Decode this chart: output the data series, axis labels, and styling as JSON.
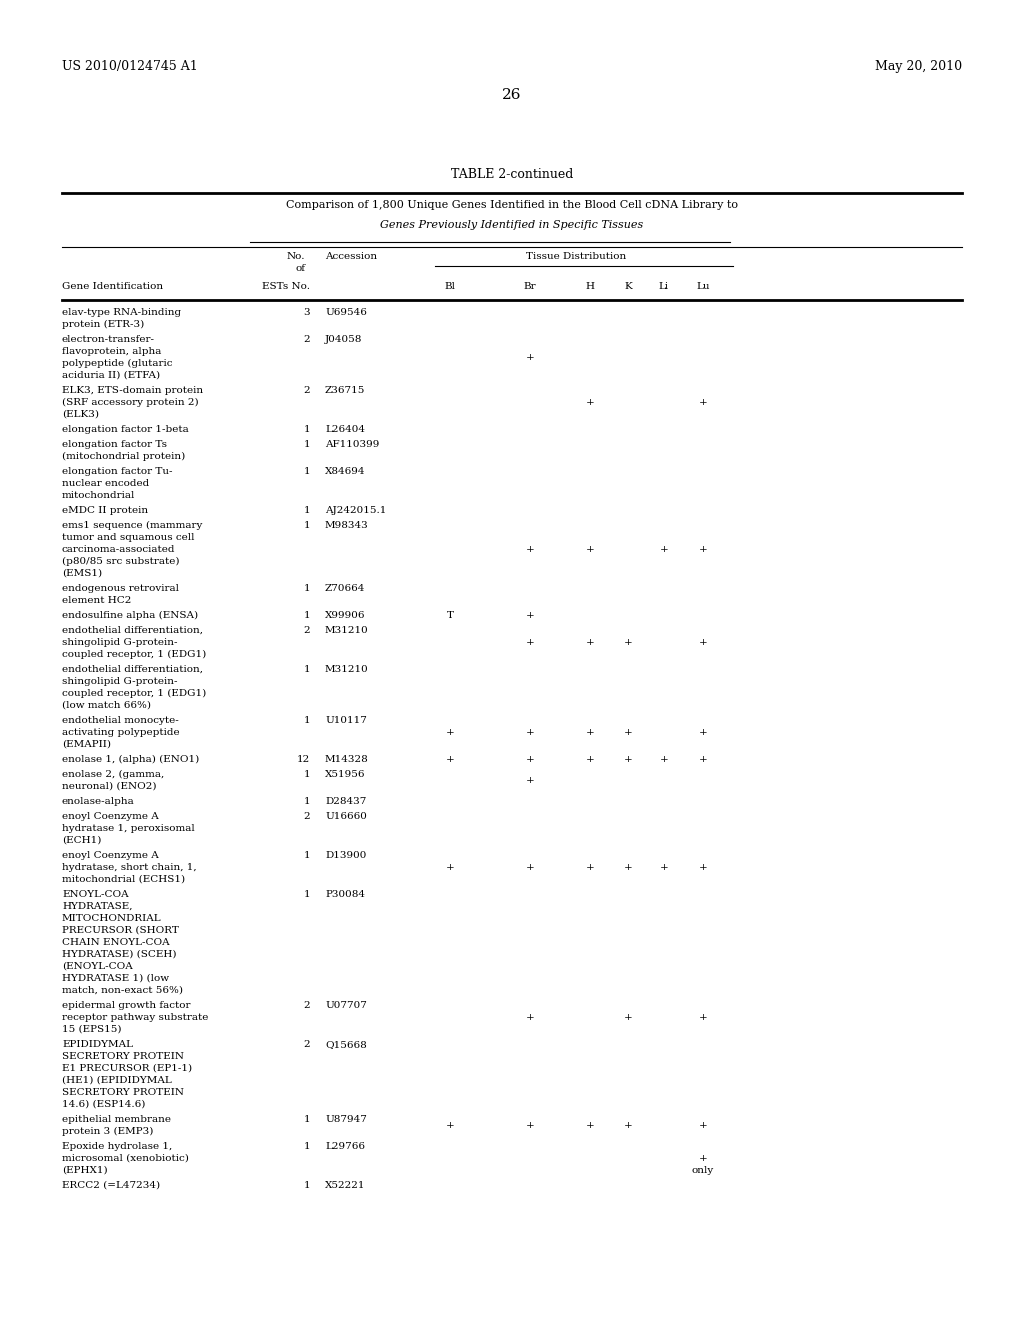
{
  "header_left": "US 2010/0124745 A1",
  "header_right": "May 20, 2010",
  "page_number": "26",
  "table_title": "TABLE 2-continued",
  "subtitle1": "Comparison of 1,800 Unique Genes Identified in the Blood Cell cDNA Library to",
  "subtitle2": "Genes Previously Identified in Specific Tissues",
  "rows": [
    {
      "gene": "elav-type RNA-binding\nprotein (ETR-3)",
      "ests": "3",
      "acc": "U69546",
      "bl": "",
      "br": "",
      "h": "",
      "k": "",
      "li": "",
      "lu": ""
    },
    {
      "gene": "electron-transfer-\nflavoprotein, alpha\npolypeptide (glutaric\naciduria II) (ETFA)",
      "ests": "2",
      "acc": "J04058",
      "bl": "",
      "br": "+",
      "h": "",
      "k": "",
      "li": "",
      "lu": ""
    },
    {
      "gene": "ELK3, ETS-domain protein\n(SRF accessory protein 2)\n(ELK3)",
      "ests": "2",
      "acc": "Z36715",
      "bl": "",
      "br": "",
      "h": "+",
      "k": "",
      "li": "",
      "lu": "+"
    },
    {
      "gene": "elongation factor 1-beta",
      "ests": "1",
      "acc": "L26404",
      "bl": "",
      "br": "",
      "h": "",
      "k": "",
      "li": "",
      "lu": ""
    },
    {
      "gene": "elongation factor Ts\n(mitochondrial protein)",
      "ests": "1",
      "acc": "AF110399",
      "bl": "",
      "br": "",
      "h": "",
      "k": "",
      "li": "",
      "lu": ""
    },
    {
      "gene": "elongation factor Tu-\nnuclear encoded\nmitochondrial",
      "ests": "1",
      "acc": "X84694",
      "bl": "",
      "br": "",
      "h": "",
      "k": "",
      "li": "",
      "lu": ""
    },
    {
      "gene": "eMDC II protein",
      "ests": "1",
      "acc": "AJ242015.1",
      "bl": "",
      "br": "",
      "h": "",
      "k": "",
      "li": "",
      "lu": ""
    },
    {
      "gene": "ems1 sequence (mammary\ntumor and squamous cell\ncarcinoma-associated\n(p80/85 src substrate)\n(EMS1)",
      "ests": "1",
      "acc": "M98343",
      "bl": "",
      "br": "+",
      "h": "+",
      "k": "",
      "li": "+",
      "lu": "+"
    },
    {
      "gene": "endogenous retroviral\nelement HC2",
      "ests": "1",
      "acc": "Z70664",
      "bl": "",
      "br": "",
      "h": "",
      "k": "",
      "li": "",
      "lu": ""
    },
    {
      "gene": "endosulfine alpha (ENSA)",
      "ests": "1",
      "acc": "X99906",
      "bl": "T",
      "br": "+",
      "h": "",
      "k": "",
      "li": "",
      "lu": ""
    },
    {
      "gene": "endothelial differentiation,\nshingolipid G-protein-\ncoupled receptor, 1 (EDG1)",
      "ests": "2",
      "acc": "M31210",
      "bl": "",
      "br": "+",
      "h": "+",
      "k": "+",
      "li": "",
      "lu": "+"
    },
    {
      "gene": "endothelial differentiation,\nshingolipid G-protein-\ncoupled receptor, 1 (EDG1)\n(low match 66%)",
      "ests": "1",
      "acc": "M31210",
      "bl": "",
      "br": "",
      "h": "",
      "k": "",
      "li": "",
      "lu": ""
    },
    {
      "gene": "endothelial monocyte-\nactivating polypeptide\n(EMAPII)",
      "ests": "1",
      "acc": "U10117",
      "bl": "+",
      "br": "+",
      "h": "+",
      "k": "+",
      "li": "",
      "lu": "+"
    },
    {
      "gene": "enolase 1, (alpha) (ENO1)",
      "ests": "12",
      "acc": "M14328",
      "bl": "+",
      "br": "+",
      "h": "+",
      "k": "+",
      "li": "+",
      "lu": "+"
    },
    {
      "gene": "enolase 2, (gamma,\nneuronal) (ENO2)",
      "ests": "1",
      "acc": "X51956",
      "bl": "",
      "br": "+",
      "h": "",
      "k": "",
      "li": "",
      "lu": ""
    },
    {
      "gene": "enolase-alpha",
      "ests": "1",
      "acc": "D28437",
      "bl": "",
      "br": "",
      "h": "",
      "k": "",
      "li": "",
      "lu": ""
    },
    {
      "gene": "enoyl Coenzyme A\nhydratase 1, peroxisomal\n(ECH1)",
      "ests": "2",
      "acc": "U16660",
      "bl": "",
      "br": "",
      "h": "",
      "k": "",
      "li": "",
      "lu": ""
    },
    {
      "gene": "enoyl Coenzyme A\nhydratase, short chain, 1,\nmitochondrial (ECHS1)",
      "ests": "1",
      "acc": "D13900",
      "bl": "+",
      "br": "+",
      "h": "+",
      "k": "+",
      "li": "+",
      "lu": "+"
    },
    {
      "gene": "ENOYL-COA\nHYDRATASE,\nMITOCHONDRIAL\nPRECURSOR (SHORT\nCHAIN ENOYL-COA\nHYDRATASE) (SCEH)\n(ENOYL-COA\nHYDRATASE 1) (low\nmatch, non-exact 56%)",
      "ests": "1",
      "acc": "P30084",
      "bl": "",
      "br": "",
      "h": "",
      "k": "",
      "li": "",
      "lu": ""
    },
    {
      "gene": "epidermal growth factor\nreceptor pathway substrate\n15 (EPS15)",
      "ests": "2",
      "acc": "U07707",
      "bl": "",
      "br": "+",
      "h": "",
      "k": "+",
      "li": "",
      "lu": "+"
    },
    {
      "gene": "EPIDIDYMAL\nSECRETORY PROTEIN\nE1 PRECURSOR (EP1-1)\n(HE1) (EPIDIDYMAL\nSECRETORY PROTEIN\n14.6) (ESP14.6)",
      "ests": "2",
      "acc": "Q15668",
      "bl": "",
      "br": "",
      "h": "",
      "k": "",
      "li": "",
      "lu": ""
    },
    {
      "gene": "epithelial membrane\nprotein 3 (EMP3)",
      "ests": "1",
      "acc": "U87947",
      "bl": "+",
      "br": "+",
      "h": "+",
      "k": "+",
      "li": "",
      "lu": "+"
    },
    {
      "gene": "Epoxide hydrolase 1,\nmicrosomal (xenobiotic)\n(EPHX1)",
      "ests": "1",
      "acc": "L29766",
      "bl": "",
      "br": "",
      "h": "",
      "k": "",
      "li": "",
      "lu": "+\nonly"
    },
    {
      "gene": "ERCC2 (=L47234)",
      "ests": "1",
      "acc": "X52221",
      "bl": "",
      "br": "",
      "h": "",
      "k": "",
      "li": "",
      "lu": ""
    }
  ]
}
